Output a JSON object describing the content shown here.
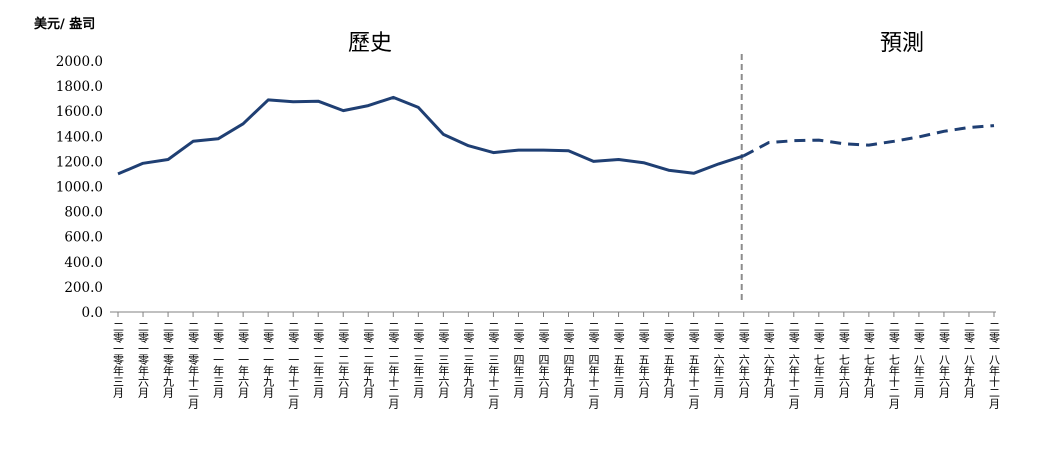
{
  "chart_data": {
    "type": "line",
    "ylabel": "美元/ 盎司",
    "ylim": [
      0,
      2000
    ],
    "yticks": [
      "2000.0",
      "1800.0",
      "1600.0",
      "1400.0",
      "1200.0",
      "1000.0",
      "800.0",
      "600.0",
      "400.0",
      "200.0",
      "0.0"
    ],
    "annotations": [
      "歷史",
      "預測"
    ],
    "categories": [
      "二零一零年三月",
      "二零一零年六月",
      "二零一零年九月",
      "二零一零年十二月",
      "二零一一年三月",
      "二零一一年六月",
      "二零一一年九月",
      "二零一一年十二月",
      "二零一二年三月",
      "二零一二年六月",
      "二零一二年九月",
      "二零一二年十二月",
      "二零一三年三月",
      "二零一三年六月",
      "二零一三年九月",
      "二零一三年十二月",
      "二零一四年三月",
      "二零一四年六月",
      "二零一四年九月",
      "二零一四年十二月",
      "二零一五年三月",
      "二零一五年六月",
      "二零一五年九月",
      "二零一五年十二月",
      "二零一六年三月",
      "二零一六年六月",
      "二零一六年九月",
      "二零一六年十二月",
      "二零一七年三月",
      "二零一七年六月",
      "二零一七年九月",
      "二零一七年十二月",
      "二零一八年三月",
      "二零一八年六月",
      "二零一八年九月",
      "二零一八年十二月"
    ],
    "series": [
      {
        "historical": [
          1100,
          1185,
          1215,
          1360,
          1380,
          1500,
          1690,
          1675,
          1680,
          1605,
          1645,
          1710,
          1630,
          1415,
          1325,
          1270,
          1290,
          1290,
          1285,
          1200,
          1215,
          1190,
          1130,
          1105,
          1180,
          1245
        ],
        "forecast": [
          1245,
          1350,
          1365,
          1370,
          1340,
          1330,
          1360,
          1395,
          1440,
          1470,
          1485
        ]
      }
    ],
    "colors": {
      "line": "#1f3f73",
      "divider": "#8c8c8c",
      "axis": "#808080"
    }
  }
}
